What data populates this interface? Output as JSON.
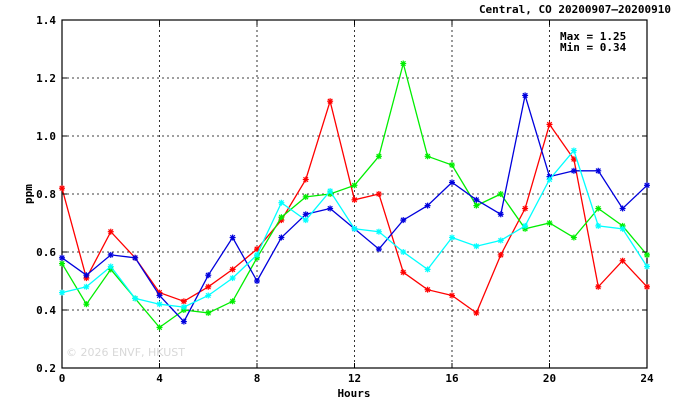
{
  "chart_data": {
    "type": "line",
    "title": "Central, CO 20200907–20200910",
    "xlabel": "Hours",
    "ylabel": "ppm",
    "xlim": [
      0,
      24
    ],
    "ylim": [
      0.2,
      1.4
    ],
    "x_ticks": [
      "0",
      "4",
      "8",
      "12",
      "16",
      "20",
      "24"
    ],
    "y_ticks": [
      "0.2",
      "0.4",
      "0.6",
      "0.8",
      "1.0",
      "1.2",
      "1.4"
    ],
    "grid": true,
    "annotations": {
      "max_text": "Max = 1.25",
      "min_text": "Min = 0.34"
    },
    "watermark": "© 2026  ENVF, HKUST",
    "x": [
      0,
      1,
      2,
      3,
      4,
      5,
      6,
      7,
      8,
      9,
      10,
      11,
      12,
      13,
      14,
      15,
      16,
      17,
      18,
      19,
      20,
      21,
      22,
      23,
      24
    ],
    "series": [
      {
        "color": "#ff0000",
        "values": [
          0.82,
          0.51,
          0.67,
          0.58,
          0.46,
          0.43,
          0.48,
          0.54,
          0.61,
          0.71,
          0.85,
          1.12,
          0.78,
          0.8,
          0.53,
          0.47,
          0.45,
          0.39,
          0.59,
          0.75,
          1.04,
          0.92,
          0.48,
          0.57,
          0.48
        ]
      },
      {
        "color": "#00ee00",
        "values": [
          0.56,
          0.42,
          0.54,
          0.44,
          0.34,
          0.4,
          0.39,
          0.43,
          0.58,
          0.72,
          0.79,
          0.8,
          0.83,
          0.93,
          1.25,
          0.93,
          0.9,
          0.76,
          0.8,
          0.68,
          0.7,
          0.65,
          0.75,
          0.69,
          0.59
        ]
      },
      {
        "color": "#0000dd",
        "values": [
          0.58,
          0.52,
          0.59,
          0.58,
          0.45,
          0.36,
          0.52,
          0.65,
          0.5,
          0.65,
          0.73,
          0.75,
          0.68,
          0.61,
          0.71,
          0.76,
          0.84,
          0.78,
          0.73,
          1.14,
          0.86,
          0.88,
          0.88,
          0.75,
          0.83
        ]
      },
      {
        "color": "#00ffff",
        "values": [
          0.46,
          0.48,
          0.55,
          0.44,
          0.42,
          0.41,
          0.45,
          0.51,
          0.59,
          0.77,
          0.71,
          0.81,
          0.68,
          0.67,
          0.6,
          0.54,
          0.65,
          0.62,
          0.64,
          0.69,
          0.85,
          0.95,
          0.69,
          0.68,
          0.55
        ]
      }
    ]
  }
}
